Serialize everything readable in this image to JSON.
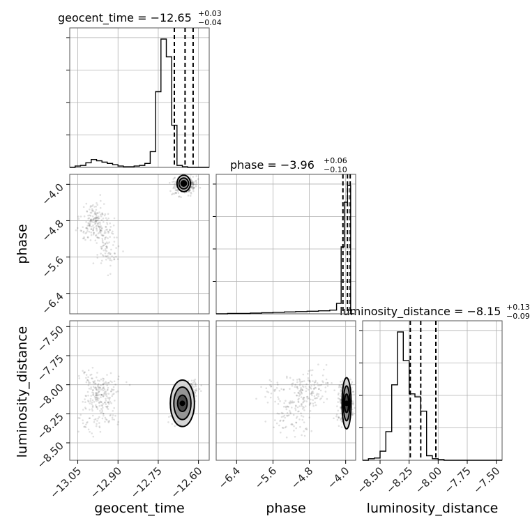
{
  "chart_data": {
    "type": "corner",
    "parameters": [
      "geocent_time",
      "phase",
      "luminosity_distance"
    ],
    "colors": {
      "line": "#000000",
      "samples": "#000000",
      "grid": "#b0b0b0",
      "frame": "#555555"
    },
    "grid": true,
    "ranges": {
      "geocent_time": [
        -13.08,
        -12.56
      ],
      "phase": [
        -6.85,
        -3.78
      ],
      "luminosity_distance": [
        -8.65,
        -7.45
      ]
    },
    "ticks": {
      "geocent_time": [
        -13.05,
        -12.9,
        -12.75,
        -12.6
      ],
      "phase": [
        -6.4,
        -5.6,
        -4.8,
        -4.0
      ],
      "luminosity_distance": [
        -8.5,
        -8.25,
        -8.0,
        -7.75,
        -7.5
      ]
    },
    "tick_labels": {
      "geocent_time": [
        "−13.05",
        "−12.90",
        "−12.75",
        "−12.60"
      ],
      "phase": [
        "−6.4",
        "−5.6",
        "−4.8",
        "−4.0"
      ],
      "luminosity_distance": [
        "−8.50",
        "−8.25",
        "−8.00",
        "−7.75",
        "−7.50"
      ]
    },
    "titles": {
      "geocent_time": {
        "main": "geocent_time = −12.65",
        "sup": "+0.03",
        "sub": "−0.04"
      },
      "phase": {
        "main": "phase = −3.96",
        "sup": "+0.06",
        "sub": "−0.10"
      },
      "luminosity_distance": {
        "main": "luminosity_distance = −8.15",
        "sup": "+0.13",
        "sub": "−0.09"
      }
    },
    "quantiles": {
      "geocent_time": [
        -12.69,
        -12.65,
        -12.62
      ],
      "phase": [
        -4.06,
        -3.96,
        -3.9
      ],
      "luminosity_distance": [
        -8.24,
        -8.15,
        -8.02
      ]
    },
    "histograms": {
      "geocent_time": {
        "edges": [
          -13.08,
          -13.06,
          -13.04,
          -13.02,
          -13.0,
          -12.98,
          -12.96,
          -12.94,
          -12.92,
          -12.9,
          -12.88,
          -12.86,
          -12.84,
          -12.82,
          -12.8,
          -12.78,
          -12.76,
          -12.74,
          -12.72,
          -12.7,
          -12.68,
          -12.66,
          -12.64,
          -12.62,
          -12.6,
          -12.58,
          -12.56
        ],
        "counts": [
          0,
          2,
          3,
          7,
          12,
          10,
          8,
          6,
          4,
          2,
          1,
          1,
          2,
          3,
          6,
          24,
          115,
          195,
          168,
          64,
          3,
          1,
          0,
          0,
          0,
          0
        ]
      },
      "phase": {
        "edges": [
          -6.85,
          -6.6,
          -6.35,
          -6.1,
          -5.85,
          -5.6,
          -5.35,
          -5.1,
          -4.85,
          -4.6,
          -4.35,
          -4.2,
          -4.1,
          -4.03,
          -3.96,
          -3.89,
          -3.82
        ],
        "counts": [
          0,
          1,
          1,
          2,
          3,
          4,
          5,
          6,
          7,
          8,
          10,
          28,
          180,
          300,
          345,
          0
        ]
      },
      "luminosity_distance": {
        "edges": [
          -8.65,
          -8.6,
          -8.55,
          -8.5,
          -8.45,
          -8.4,
          -8.35,
          -8.3,
          -8.25,
          -8.2,
          -8.15,
          -8.1,
          -8.05,
          -8.0,
          -7.95,
          -7.9,
          -7.85,
          -7.8,
          -7.75,
          -7.7,
          -7.65,
          -7.6,
          -7.55,
          -7.5,
          -7.45
        ],
        "counts": [
          0,
          2,
          3,
          12,
          38,
          100,
          170,
          132,
          88,
          84,
          65,
          6,
          2,
          1,
          0,
          0,
          0,
          0,
          0,
          0,
          0,
          0,
          0,
          0
        ]
      }
    },
    "scatter_clusters": {
      "geocent_time": [
        -12.65,
        -12.64,
        -12.66,
        -12.63,
        -12.67,
        -12.66,
        -12.64,
        -12.62,
        -12.68,
        -12.65,
        -12.98,
        -12.97,
        -12.95,
        -12.99,
        -12.96,
        -12.94,
        -13.01,
        -13.0,
        -12.93,
        -12.97
      ],
      "phase": [
        -3.98,
        -4.0,
        -3.96,
        -4.05,
        -3.99,
        -4.04,
        -3.97,
        -4.02,
        -4.08,
        -3.95,
        -4.6,
        -4.85,
        -5.05,
        -4.9,
        -5.2,
        -5.4,
        -5.0,
        -4.7,
        -5.6,
        -4.95
      ],
      "luminosity_distance": [
        -8.18,
        -8.12,
        -8.2,
        -8.05,
        -8.24,
        -8.15,
        -8.1,
        -8.02,
        -8.28,
        -8.16,
        -8.05,
        -8.1,
        -8.0,
        -8.15,
        -8.2,
        -8.28,
        -8.35,
        -7.95,
        -8.05,
        -8.12
      ]
    },
    "contours_2d": [
      {
        "x": "geocent_time",
        "y": "phase",
        "cx": -12.655,
        "cy": -3.98,
        "levels": [
          [
            0.025,
            0.18
          ],
          [
            0.018,
            0.12
          ],
          [
            0.01,
            0.06
          ]
        ]
      },
      {
        "x": "geocent_time",
        "y": "luminosity_distance",
        "cx": -12.66,
        "cy": -8.16,
        "levels": [
          [
            0.045,
            0.2
          ],
          [
            0.032,
            0.14
          ],
          [
            0.018,
            0.07
          ]
        ]
      },
      {
        "x": "phase",
        "y": "luminosity_distance",
        "cx": -3.98,
        "cy": -8.16,
        "levels": [
          [
            0.1,
            0.22
          ],
          [
            0.07,
            0.15
          ],
          [
            0.045,
            0.08
          ]
        ]
      }
    ]
  }
}
